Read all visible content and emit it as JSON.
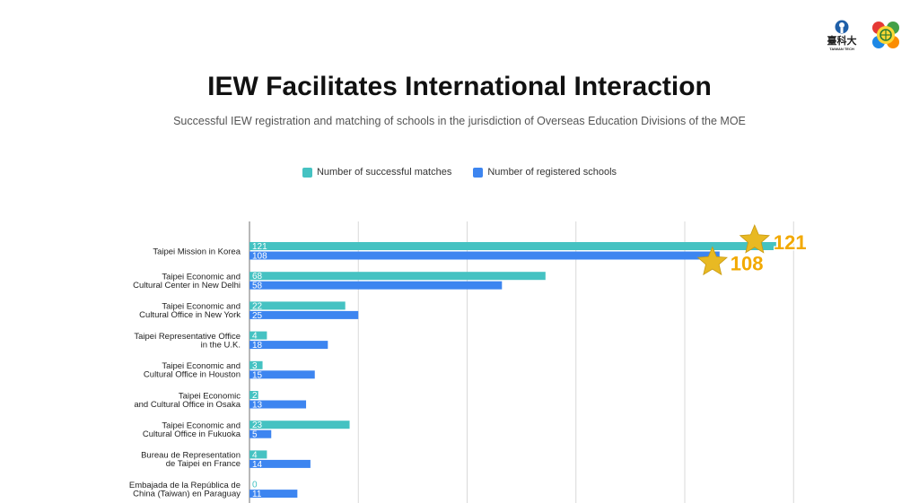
{
  "header": {
    "logo_text": "臺科大",
    "logo_subtext": "TAIWAN TECH"
  },
  "colors": {
    "matches": "#45C2C2",
    "registered": "#3D85F0",
    "star": "#E8B923",
    "callout_text": "#F2A900"
  },
  "chart_data": {
    "type": "bar",
    "orientation": "horizontal",
    "title": "IEW Facilitates International Interaction",
    "subtitle": "Successful IEW registration and matching of schools in the jurisdiction of Overseas Education Divisions of the MOE",
    "categories": [
      [
        "Taipei Mission in Korea"
      ],
      [
        "Taipei Economic and",
        "Cultural Center in New Delhi"
      ],
      [
        "Taipei Economic and",
        "Cultural Office in New York"
      ],
      [
        "Taipei Representative Office",
        "in the U.K."
      ],
      [
        "Taipei Economic and",
        "Cultural Office in Houston"
      ],
      [
        "Taipei Economic",
        "and Cultural Office in Osaka"
      ],
      [
        "Taipei Economic and",
        "Cultural Office in Fukuoka"
      ],
      [
        "Bureau de Representation",
        "de Taipei en France"
      ],
      [
        "Embajada de la República de",
        "China (Taiwan) en Paraguay"
      ]
    ],
    "series": [
      {
        "name": "Number of successful matches",
        "values": [
          121,
          68,
          22,
          4,
          3,
          2,
          23,
          4,
          0
        ]
      },
      {
        "name": "Number of registered schools",
        "values": [
          108,
          58,
          25,
          18,
          15,
          13,
          5,
          14,
          11
        ]
      }
    ],
    "xlim": [
      0,
      125
    ],
    "grid": true,
    "legend": "top-center",
    "callouts": [
      "121",
      "108"
    ]
  }
}
